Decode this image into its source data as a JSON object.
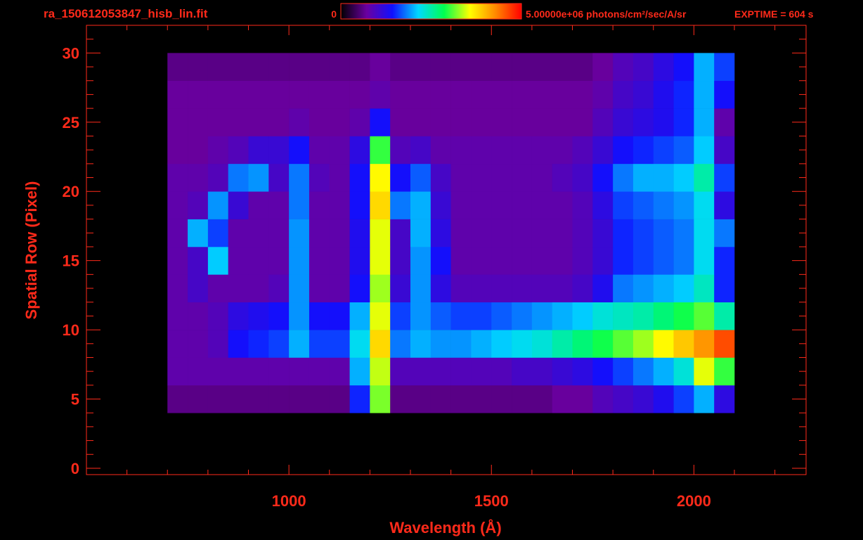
{
  "chart_data": {
    "type": "heatmap",
    "title": "ra_150612053847_hisb_lin.fit",
    "exposure": "EXPTIME = 604 s",
    "x_label": "Wavelength (Å)",
    "y_label": "Spatial Row (Pixel)",
    "xlim": [
      500,
      2277
    ],
    "xticks": [
      1000,
      1500,
      2000
    ],
    "xminorticks": [
      600,
      700,
      800,
      900,
      1100,
      1200,
      1300,
      1400,
      1600,
      1700,
      1800,
      1900,
      2100,
      2200
    ],
    "ylim": [
      -0.46,
      32
    ],
    "yticks": [
      0,
      5,
      10,
      15,
      20,
      25,
      30
    ],
    "yminorticks": [
      1,
      2,
      3,
      4,
      6,
      7,
      8,
      9,
      11,
      12,
      13,
      14,
      16,
      17,
      18,
      19,
      21,
      22,
      23,
      24,
      26,
      27,
      28,
      29,
      31
    ],
    "zlim": [
      0,
      5000000
    ],
    "zticks": [
      0,
      {
        "value": 5000000,
        "label": "5.00000e+06 photons/cm²/sec/A/sr"
      }
    ],
    "colormap": [
      "#000000",
      "#6a00a0",
      "#1010ff",
      "#00d8ff",
      "#00ff50",
      "#ffff00",
      "#ff8800",
      "#ff0000"
    ],
    "axis_color": "#ff2a1a",
    "xbins": [
      700,
      750,
      800,
      850,
      900,
      950,
      1000,
      1050,
      1100,
      1150,
      1200,
      1250,
      1300,
      1350,
      1400,
      1450,
      1500,
      1550,
      1600,
      1650,
      1700,
      1750,
      1800,
      1850,
      1900,
      1950,
      2000,
      2050,
      2100
    ],
    "ybins": [
      4,
      6,
      8,
      10,
      12,
      14,
      16,
      18,
      20,
      22,
      24,
      26,
      28,
      30
    ],
    "z": [
      [
        600000.0,
        600000.0,
        600000.0,
        600000.0,
        600000.0,
        600000.0,
        600000.0,
        600000.0,
        600000.0,
        1500000.0,
        3200000.0,
        600000.0,
        600000.0,
        600000.0,
        600000.0,
        600000.0,
        600000.0,
        600000.0,
        600000.0,
        700000.0,
        700000.0,
        900000.0,
        1000000.0,
        1100000.0,
        1300000.0,
        1600000.0,
        2000000.0,
        1200000.0
      ],
      [
        800000.0,
        800000.0,
        800000.0,
        800000.0,
        800000.0,
        800000.0,
        800000.0,
        800000.0,
        800000.0,
        2000000.0,
        3400000.0,
        900000.0,
        900000.0,
        900000.0,
        900000.0,
        900000.0,
        900000.0,
        1000000.0,
        1000000.0,
        1100000.0,
        1200000.0,
        1400000.0,
        1600000.0,
        1800000.0,
        2000000.0,
        2300000.0,
        3500000.0,
        3000000.0
      ],
      [
        800000.0,
        800000.0,
        900000.0,
        1400000.0,
        1500000.0,
        1600000.0,
        2000000.0,
        1600000.0,
        1600000.0,
        2200000.0,
        3800000.0,
        1800000.0,
        2000000.0,
        1900000.0,
        1900000.0,
        2000000.0,
        2100000.0,
        2200000.0,
        2300000.0,
        2500000.0,
        2700000.0,
        2900000.0,
        3100000.0,
        3300000.0,
        3600000.0,
        3900000.0,
        4200000.0,
        4600000.0
      ],
      [
        800000.0,
        800000.0,
        900000.0,
        1200000.0,
        1300000.0,
        1400000.0,
        1900000.0,
        1400000.0,
        1400000.0,
        2000000.0,
        3500000.0,
        1600000.0,
        1900000.0,
        1700000.0,
        1600000.0,
        1600000.0,
        1700000.0,
        1800000.0,
        1900000.0,
        2000000.0,
        2100000.0,
        2300000.0,
        2400000.0,
        2500000.0,
        2700000.0,
        2900000.0,
        3100000.0,
        2500000.0
      ],
      [
        800000.0,
        1000000.0,
        800000.0,
        800000.0,
        800000.0,
        900000.0,
        1900000.0,
        800000.0,
        800000.0,
        1400000.0,
        3300000.0,
        1100000.0,
        1900000.0,
        1200000.0,
        900000.0,
        900000.0,
        900000.0,
        900000.0,
        900000.0,
        900000.0,
        1000000.0,
        1300000.0,
        1800000.0,
        1900000.0,
        2000000.0,
        2100000.0,
        2400000.0,
        1500000.0
      ],
      [
        800000.0,
        1000000.0,
        2100000.0,
        800000.0,
        800000.0,
        800000.0,
        1900000.0,
        800000.0,
        800000.0,
        1300000.0,
        3500000.0,
        1000000.0,
        1900000.0,
        1400000.0,
        800000.0,
        800000.0,
        800000.0,
        800000.0,
        800000.0,
        800000.0,
        900000.0,
        1100000.0,
        1500000.0,
        1600000.0,
        1700000.0,
        1800000.0,
        2200000.0,
        1500000.0
      ],
      [
        800000.0,
        2000000.0,
        1600000.0,
        800000.0,
        800000.0,
        800000.0,
        1900000.0,
        800000.0,
        800000.0,
        1300000.0,
        3500000.0,
        1000000.0,
        2000000.0,
        1200000.0,
        800000.0,
        800000.0,
        800000.0,
        800000.0,
        800000.0,
        800000.0,
        900000.0,
        1100000.0,
        1500000.0,
        1600000.0,
        1700000.0,
        1800000.0,
        2200000.0,
        1800000.0
      ],
      [
        800000.0,
        900000.0,
        1900000.0,
        1100000.0,
        800000.0,
        800000.0,
        1800000.0,
        800000.0,
        800000.0,
        1400000.0,
        3800000.0,
        1800000.0,
        2000000.0,
        1100000.0,
        800000.0,
        800000.0,
        800000.0,
        800000.0,
        800000.0,
        800000.0,
        900000.0,
        1200000.0,
        1600000.0,
        1700000.0,
        1800000.0,
        1900000.0,
        2200000.0,
        1200000.0
      ],
      [
        800000.0,
        800000.0,
        900000.0,
        1800000.0,
        1900000.0,
        1000000.0,
        1800000.0,
        900000.0,
        800000.0,
        1400000.0,
        3600000.0,
        1400000.0,
        1700000.0,
        1000000.0,
        800000.0,
        800000.0,
        800000.0,
        800000.0,
        800000.0,
        900000.0,
        1000000.0,
        1400000.0,
        1800000.0,
        2000000.0,
        2000000.0,
        2100000.0,
        2500000.0,
        1600000.0
      ],
      [
        700000.0,
        700000.0,
        800000.0,
        900000.0,
        1100000.0,
        1100000.0,
        1400000.0,
        800000.0,
        800000.0,
        1200000.0,
        3000000.0,
        900000.0,
        1000000.0,
        800000.0,
        800000.0,
        800000.0,
        800000.0,
        800000.0,
        800000.0,
        800000.0,
        900000.0,
        1100000.0,
        1400000.0,
        1500000.0,
        1600000.0,
        1700000.0,
        2100000.0,
        1000000.0
      ],
      [
        700000.0,
        700000.0,
        700000.0,
        700000.0,
        700000.0,
        700000.0,
        800000.0,
        700000.0,
        700000.0,
        800000.0,
        1400000.0,
        700000.0,
        700000.0,
        700000.0,
        700000.0,
        700000.0,
        700000.0,
        700000.0,
        700000.0,
        700000.0,
        700000.0,
        900000.0,
        1100000.0,
        1200000.0,
        1300000.0,
        1500000.0,
        2000000.0,
        800000.0
      ],
      [
        700000.0,
        700000.0,
        700000.0,
        700000.0,
        700000.0,
        700000.0,
        700000.0,
        700000.0,
        700000.0,
        700000.0,
        800000.0,
        700000.0,
        700000.0,
        700000.0,
        700000.0,
        700000.0,
        700000.0,
        700000.0,
        700000.0,
        700000.0,
        700000.0,
        800000.0,
        1000000.0,
        1100000.0,
        1300000.0,
        1500000.0,
        2000000.0,
        1400000.0
      ],
      [
        600000.0,
        600000.0,
        600000.0,
        600000.0,
        600000.0,
        600000.0,
        600000.0,
        600000.0,
        600000.0,
        600000.0,
        700000.0,
        600000.0,
        600000.0,
        600000.0,
        600000.0,
        600000.0,
        600000.0,
        600000.0,
        600000.0,
        600000.0,
        600000.0,
        700000.0,
        900000.0,
        1000000.0,
        1200000.0,
        1400000.0,
        2000000.0,
        1600000.0
      ]
    ]
  }
}
